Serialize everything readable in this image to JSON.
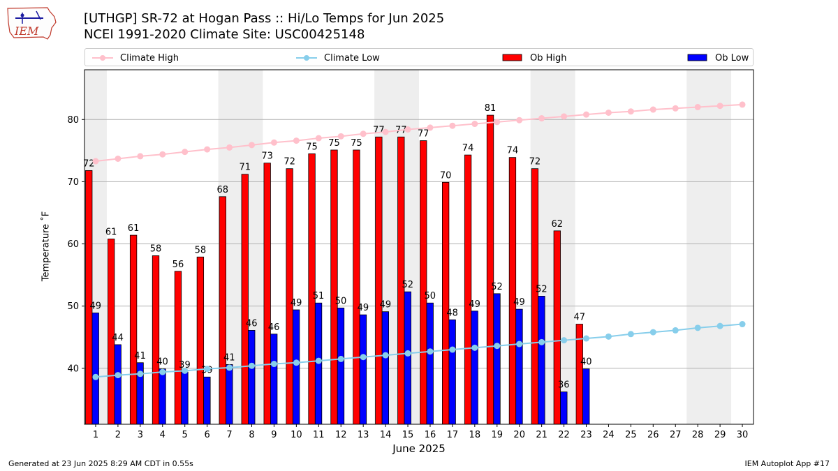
{
  "header": {
    "title_line1": "[UTHGP] SR-72 at Hogan Pass  :: Hi/Lo Temps for Jun 2025",
    "title_line2": "NCEI 1991-2020 Climate Site: USC00425148",
    "logo_text": "IEM"
  },
  "footer": {
    "left": "Generated at 23 Jun 2025 8:29 AM CDT in 0.55s",
    "right": "IEM Autoplot App #17"
  },
  "chart_data": {
    "type": "bar",
    "xlabel": "June 2025",
    "ylabel": "Temperature ˚F",
    "ylim": [
      31,
      88
    ],
    "xlim": [
      0.5,
      30.5
    ],
    "yticks": [
      40,
      50,
      60,
      70,
      80
    ],
    "grid": "horizontal",
    "legend_position": "top",
    "days": [
      1,
      2,
      3,
      4,
      5,
      6,
      7,
      8,
      9,
      10,
      11,
      12,
      13,
      14,
      15,
      16,
      17,
      18,
      19,
      20,
      21,
      22,
      23,
      24,
      25,
      26,
      27,
      28,
      29,
      30
    ],
    "weekend_bands": [
      [
        0.5,
        1.5
      ],
      [
        6.5,
        8.5
      ],
      [
        13.5,
        15.5
      ],
      [
        20.5,
        22.5
      ],
      [
        27.5,
        29.5
      ]
    ],
    "series": [
      {
        "name": "Climate High",
        "kind": "line",
        "color": "#ffc0cb",
        "values": [
          73.3,
          73.7,
          74.1,
          74.4,
          74.8,
          75.2,
          75.5,
          75.9,
          76.3,
          76.6,
          77.0,
          77.3,
          77.7,
          78.0,
          78.4,
          78.7,
          79.0,
          79.3,
          79.6,
          79.9,
          80.2,
          80.5,
          80.8,
          81.1,
          81.3,
          81.6,
          81.8,
          82.0,
          82.2,
          82.4
        ]
      },
      {
        "name": "Climate Low",
        "kind": "line",
        "color": "#87ceeb",
        "values": [
          38.6,
          38.9,
          39.1,
          39.4,
          39.6,
          39.9,
          40.1,
          40.4,
          40.7,
          40.9,
          41.2,
          41.5,
          41.8,
          42.1,
          42.4,
          42.7,
          43.0,
          43.3,
          43.6,
          43.9,
          44.2,
          44.5,
          44.8,
          45.1,
          45.5,
          45.8,
          46.1,
          46.5,
          46.8,
          47.1
        ]
      },
      {
        "name": "Ob High",
        "kind": "bar",
        "color": "#ff0000",
        "values": [
          71.8,
          60.8,
          61.4,
          58.1,
          55.6,
          57.9,
          67.6,
          71.2,
          73.0,
          72.1,
          74.5,
          75.1,
          75.1,
          77.2,
          77.2,
          76.6,
          69.9,
          74.3,
          80.7,
          73.9,
          72.1,
          62.1,
          47.1
        ],
        "labels": [
          "72",
          "61",
          "61",
          "58",
          "56",
          "58",
          "68",
          "71",
          "73",
          "72",
          "75",
          "75",
          "75",
          "77",
          "77",
          "77",
          "70",
          "74",
          "81",
          "74",
          "72",
          "62",
          "47"
        ]
      },
      {
        "name": "Ob Low",
        "kind": "bar",
        "color": "#0000ff",
        "values": [
          48.9,
          43.8,
          40.9,
          39.9,
          39.4,
          38.6,
          40.6,
          46.1,
          45.5,
          49.4,
          50.5,
          49.7,
          48.6,
          49.1,
          52.3,
          50.5,
          47.8,
          49.2,
          52.0,
          49.5,
          51.6,
          36.2,
          39.9
        ],
        "labels": [
          "49",
          "44",
          "41",
          "40",
          "39",
          "39",
          "41",
          "46",
          "46",
          "49",
          "51",
          "50",
          "49",
          "49",
          "52",
          "50",
          "48",
          "49",
          "52",
          "49",
          "52",
          "36",
          "40"
        ]
      }
    ]
  }
}
